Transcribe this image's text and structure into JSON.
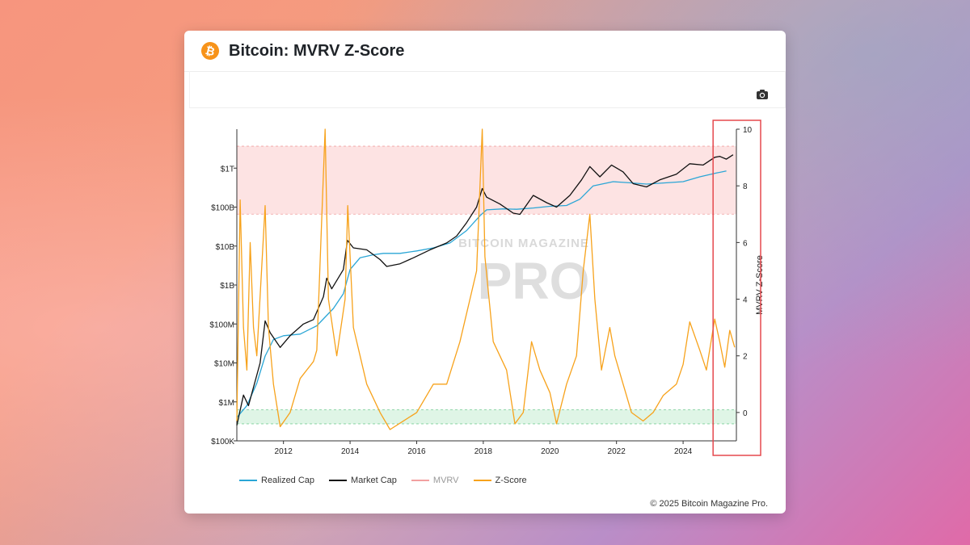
{
  "card": {
    "title": "Bitcoin: MVRV Z-Score",
    "logo_symbol": "₿",
    "camera_icon": "camera-icon",
    "copyright": "© 2025 Bitcoin Magazine Pro."
  },
  "colors": {
    "brand": "#f7931a",
    "realized_cap": "#2aa6d6",
    "market_cap": "#111111",
    "mvrv": "#f2a0a0",
    "zscore": "#f7a21b",
    "red_band": "#fde3e3",
    "green_band": "#dff5e6",
    "highlight": "#e5484d"
  },
  "watermark": {
    "top": "BITCOIN MAGAZINE",
    "main": "PRO"
  },
  "chart_data": {
    "type": "line",
    "title": "Bitcoin: MVRV Z-Score",
    "x_ticks": [
      "2012",
      "2014",
      "2016",
      "2018",
      "2020",
      "2022",
      "2024"
    ],
    "xlim": [
      2010.6,
      2025.6
    ],
    "y_left": {
      "scale": "log",
      "ticks": [
        "$100K",
        "$1M",
        "$10M",
        "$100M",
        "$1B",
        "$10B",
        "$100B",
        "$1T"
      ],
      "range": [
        100000,
        10000000000000
      ]
    },
    "y_right": {
      "label": "MVRV Z-Score",
      "ticks": [
        "0",
        "2",
        "4",
        "6",
        "8",
        "10"
      ],
      "range": [
        -1,
        10
      ]
    },
    "zones": {
      "red_zscore": [
        7,
        9.4
      ],
      "green_zscore": [
        -0.4,
        0.1
      ]
    },
    "highlight_region": {
      "x_from": 2024.9,
      "x_to": 2025.6
    },
    "legend": [
      {
        "name": "Realized Cap"
      },
      {
        "name": "Market Cap"
      },
      {
        "name": "MVRV"
      },
      {
        "name": "Z-Score"
      }
    ],
    "series": [
      {
        "name": "Realized Cap",
        "axis": "left",
        "points": [
          [
            2010.6,
            400000
          ],
          [
            2010.9,
            800000
          ],
          [
            2011.2,
            3000000
          ],
          [
            2011.45,
            15000000
          ],
          [
            2011.7,
            40000000
          ],
          [
            2012.0,
            50000000
          ],
          [
            2012.5,
            55000000
          ],
          [
            2013.0,
            90000000
          ],
          [
            2013.5,
            250000000
          ],
          [
            2013.8,
            600000000
          ],
          [
            2014.0,
            2500000000
          ],
          [
            2014.3,
            5000000000
          ],
          [
            2014.7,
            6000000000
          ],
          [
            2015.0,
            6500000000
          ],
          [
            2015.5,
            6500000000
          ],
          [
            2016.0,
            7500000000
          ],
          [
            2016.5,
            9000000000
          ],
          [
            2017.0,
            12000000000
          ],
          [
            2017.5,
            25000000000
          ],
          [
            2017.9,
            60000000000
          ],
          [
            2018.1,
            85000000000
          ],
          [
            2018.6,
            90000000000
          ],
          [
            2019.0,
            88000000000
          ],
          [
            2019.5,
            95000000000
          ],
          [
            2020.0,
            105000000000
          ],
          [
            2020.5,
            110000000000
          ],
          [
            2020.9,
            160000000000
          ],
          [
            2021.3,
            350000000000
          ],
          [
            2021.9,
            450000000000
          ],
          [
            2022.4,
            420000000000
          ],
          [
            2022.9,
            390000000000
          ],
          [
            2023.5,
            420000000000
          ],
          [
            2024.0,
            450000000000
          ],
          [
            2024.5,
            600000000000
          ],
          [
            2025.0,
            750000000000
          ],
          [
            2025.3,
            850000000000
          ]
        ]
      },
      {
        "name": "Market Cap",
        "axis": "left",
        "points": [
          [
            2010.6,
            250000
          ],
          [
            2010.8,
            1500000
          ],
          [
            2010.95,
            800000
          ],
          [
            2011.3,
            10000000
          ],
          [
            2011.45,
            120000000
          ],
          [
            2011.6,
            60000000
          ],
          [
            2011.9,
            25000000
          ],
          [
            2012.2,
            50000000
          ],
          [
            2012.6,
            100000000
          ],
          [
            2012.9,
            130000000
          ],
          [
            2013.2,
            500000000
          ],
          [
            2013.3,
            1500000000
          ],
          [
            2013.45,
            800000000
          ],
          [
            2013.8,
            2500000000
          ],
          [
            2013.92,
            14000000000
          ],
          [
            2014.1,
            9000000000
          ],
          [
            2014.5,
            8000000000
          ],
          [
            2014.9,
            4500000000
          ],
          [
            2015.1,
            3000000000
          ],
          [
            2015.5,
            3500000000
          ],
          [
            2015.9,
            5000000000
          ],
          [
            2016.4,
            8000000000
          ],
          [
            2016.9,
            12000000000
          ],
          [
            2017.2,
            18000000000
          ],
          [
            2017.5,
            40000000000
          ],
          [
            2017.8,
            100000000000
          ],
          [
            2017.97,
            300000000000
          ],
          [
            2018.1,
            180000000000
          ],
          [
            2018.5,
            120000000000
          ],
          [
            2018.9,
            70000000000
          ],
          [
            2019.1,
            65000000000
          ],
          [
            2019.5,
            200000000000
          ],
          [
            2019.9,
            130000000000
          ],
          [
            2020.2,
            100000000000
          ],
          [
            2020.6,
            200000000000
          ],
          [
            2020.95,
            500000000000
          ],
          [
            2021.2,
            1100000000000
          ],
          [
            2021.5,
            600000000000
          ],
          [
            2021.85,
            1200000000000
          ],
          [
            2022.2,
            800000000000
          ],
          [
            2022.5,
            400000000000
          ],
          [
            2022.9,
            330000000000
          ],
          [
            2023.3,
            500000000000
          ],
          [
            2023.8,
            700000000000
          ],
          [
            2024.2,
            1300000000000
          ],
          [
            2024.6,
            1200000000000
          ],
          [
            2024.95,
            1900000000000
          ],
          [
            2025.1,
            2000000000000
          ],
          [
            2025.3,
            1700000000000
          ],
          [
            2025.5,
            2200000000000
          ]
        ]
      },
      {
        "name": "Z-Score",
        "axis": "right",
        "points": [
          [
            2010.6,
            -0.3
          ],
          [
            2010.7,
            7.5
          ],
          [
            2010.8,
            3.0
          ],
          [
            2010.9,
            1.5
          ],
          [
            2011.0,
            6.0
          ],
          [
            2011.1,
            3.0
          ],
          [
            2011.2,
            2.0
          ],
          [
            2011.45,
            7.3
          ],
          [
            2011.55,
            3.0
          ],
          [
            2011.7,
            1.0
          ],
          [
            2011.9,
            -0.5
          ],
          [
            2012.2,
            0.0
          ],
          [
            2012.5,
            1.2
          ],
          [
            2012.9,
            1.8
          ],
          [
            2013.0,
            2.2
          ],
          [
            2013.25,
            10.0
          ],
          [
            2013.35,
            4.0
          ],
          [
            2013.6,
            2.0
          ],
          [
            2013.85,
            4.0
          ],
          [
            2013.93,
            7.3
          ],
          [
            2014.1,
            3.0
          ],
          [
            2014.5,
            1.0
          ],
          [
            2014.9,
            0.0
          ],
          [
            2015.2,
            -0.6
          ],
          [
            2015.6,
            -0.3
          ],
          [
            2016.0,
            0.0
          ],
          [
            2016.5,
            1.0
          ],
          [
            2016.9,
            1.0
          ],
          [
            2017.3,
            2.5
          ],
          [
            2017.6,
            4.0
          ],
          [
            2017.8,
            5.0
          ],
          [
            2017.97,
            10.0
          ],
          [
            2018.05,
            5.5
          ],
          [
            2018.3,
            2.5
          ],
          [
            2018.7,
            1.5
          ],
          [
            2018.95,
            -0.4
          ],
          [
            2019.2,
            0.0
          ],
          [
            2019.45,
            2.5
          ],
          [
            2019.7,
            1.5
          ],
          [
            2020.0,
            0.7
          ],
          [
            2020.2,
            -0.4
          ],
          [
            2020.5,
            1.0
          ],
          [
            2020.8,
            2.0
          ],
          [
            2021.0,
            5.0
          ],
          [
            2021.2,
            7.0
          ],
          [
            2021.35,
            4.0
          ],
          [
            2021.55,
            1.5
          ],
          [
            2021.8,
            3.0
          ],
          [
            2021.95,
            2.0
          ],
          [
            2022.2,
            1.0
          ],
          [
            2022.45,
            0.0
          ],
          [
            2022.8,
            -0.3
          ],
          [
            2023.1,
            0.0
          ],
          [
            2023.4,
            0.6
          ],
          [
            2023.8,
            1.0
          ],
          [
            2024.0,
            1.7
          ],
          [
            2024.2,
            3.2
          ],
          [
            2024.5,
            2.2
          ],
          [
            2024.7,
            1.5
          ],
          [
            2024.95,
            3.3
          ],
          [
            2025.1,
            2.5
          ],
          [
            2025.25,
            1.6
          ],
          [
            2025.4,
            2.9
          ],
          [
            2025.55,
            2.3
          ]
        ]
      }
    ]
  }
}
